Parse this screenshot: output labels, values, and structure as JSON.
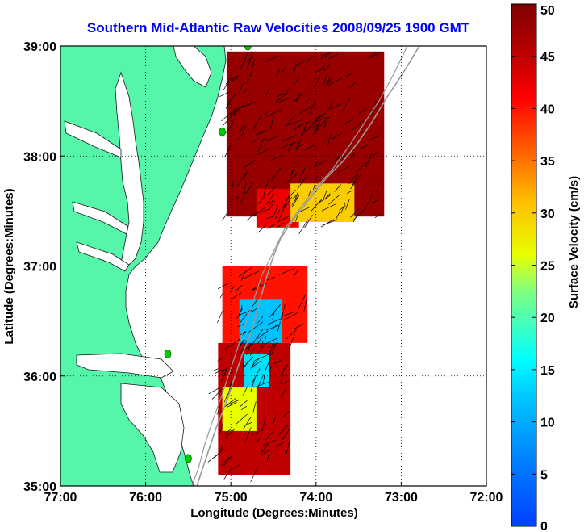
{
  "chart_data": {
    "type": "heatmap",
    "title": "Southern Mid-Atlantic Raw Velocities 2008/09/25 1900 GMT",
    "xlabel": "Longitude (Degrees:Minutes)",
    "ylabel": "Latitude (Degrees:Minutes)",
    "xlim": [
      -77,
      -72
    ],
    "ylim": [
      35,
      39
    ],
    "x_ticks": [
      -77,
      -76,
      -75,
      -74,
      -73,
      -72
    ],
    "x_tick_labels": [
      "77:00",
      "76:00",
      "75:00",
      "74:00",
      "73:00",
      "72:00"
    ],
    "y_ticks": [
      35,
      36,
      37,
      38,
      39
    ],
    "y_tick_labels": [
      "35:00",
      "36:00",
      "37:00",
      "38:00",
      "39:00"
    ],
    "grid": true,
    "colorbar": {
      "label": "Surface Velocity (cm/s)",
      "range": [
        0,
        50
      ],
      "ticks": [
        0,
        5,
        10,
        15,
        20,
        25,
        30,
        35,
        40,
        45,
        50
      ],
      "tick_labels": [
        "0",
        "5",
        "10",
        "15",
        "20",
        "25",
        "30",
        "35",
        "40",
        "45",
        "50"
      ],
      "colormap": "jet"
    },
    "colors": {
      "land": "#55f5aa",
      "background": "#ffffff",
      "arrows": "#000000",
      "title": "#0000ff",
      "stations": "#00cc00"
    },
    "regions": [
      {
        "lon_range": [
          -75.05,
          -73.2
        ],
        "lat_range": [
          37.45,
          38.95
        ],
        "speed": 48
      },
      {
        "lon_range": [
          -74.7,
          -74.2
        ],
        "lat_range": [
          37.35,
          37.7
        ],
        "speed": 42
      },
      {
        "lon_range": [
          -74.3,
          -73.55
        ],
        "lat_range": [
          37.4,
          37.75
        ],
        "speed": 30
      },
      {
        "lon_range": [
          -75.1,
          -74.1
        ],
        "lat_range": [
          36.3,
          37.0
        ],
        "speed": 40
      },
      {
        "lon_range": [
          -74.9,
          -74.4
        ],
        "lat_range": [
          36.2,
          36.7
        ],
        "speed": 12
      },
      {
        "lon_range": [
          -75.15,
          -74.3
        ],
        "lat_range": [
          35.1,
          36.3
        ],
        "speed": 45
      },
      {
        "lon_range": [
          -74.85,
          -74.55
        ],
        "lat_range": [
          35.9,
          36.2
        ],
        "speed": 14
      },
      {
        "lon_range": [
          -75.1,
          -74.7
        ],
        "lat_range": [
          35.5,
          35.9
        ],
        "speed": 26
      }
    ],
    "stations": [
      {
        "lon": -74.8,
        "lat": 39.0
      },
      {
        "lon": -75.1,
        "lat": 38.22
      },
      {
        "lon": -75.74,
        "lat": 36.2
      },
      {
        "lon": -75.5,
        "lat": 35.25
      }
    ]
  }
}
